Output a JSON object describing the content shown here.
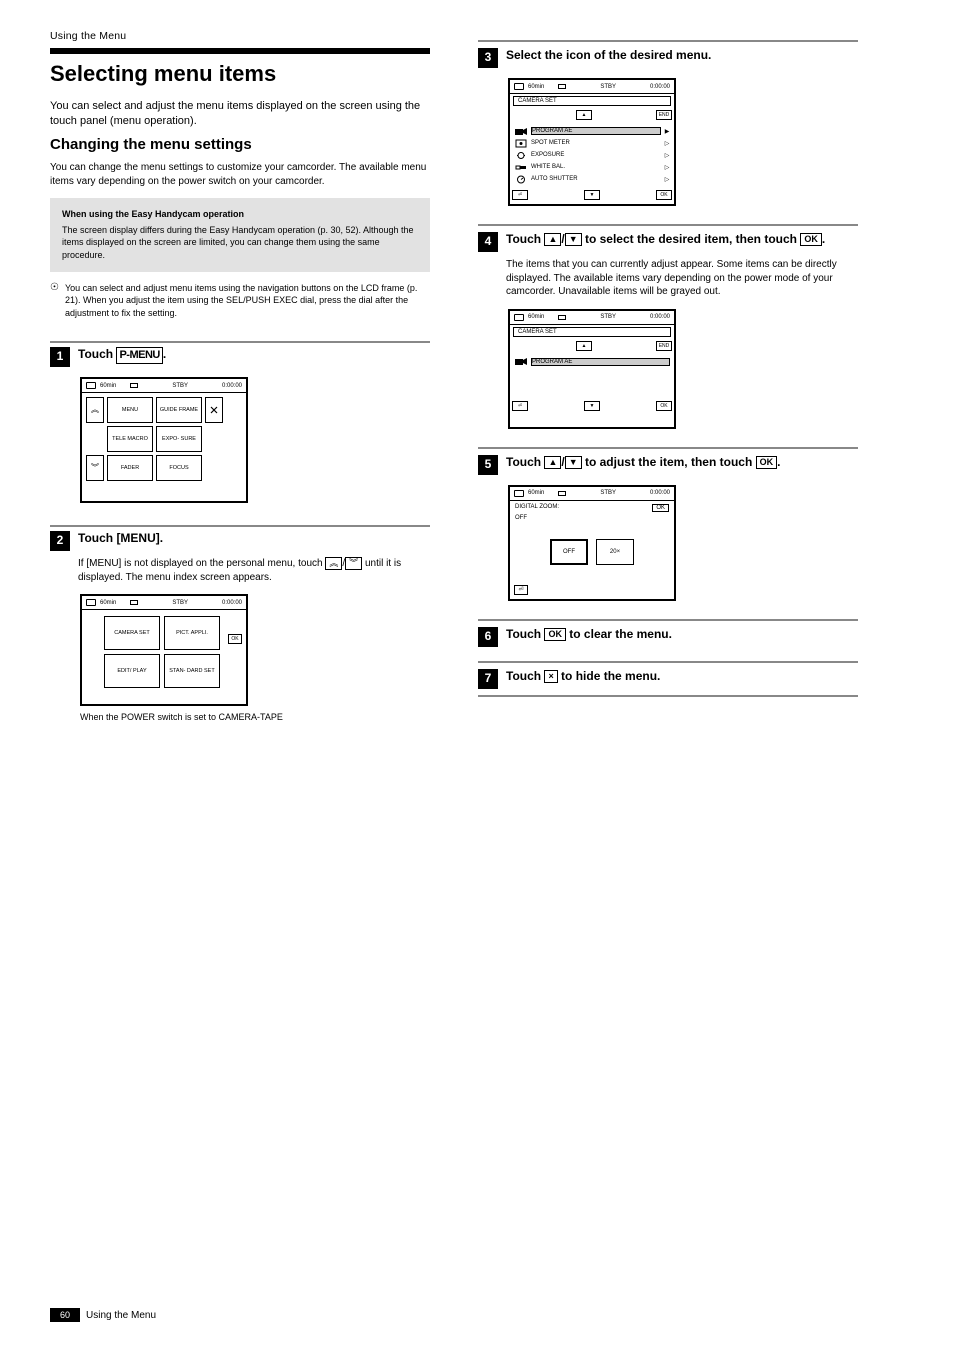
{
  "page": {
    "number": "60",
    "footer_section": "Using the Menu"
  },
  "col_left": {
    "overline": "Using the Menu",
    "thick_rule_color": "#000000",
    "title": "Selecting menu items",
    "intro": "You can select and adjust the menu items displayed on the screen using the touch panel (menu operation).",
    "subtitle": "Changing the menu settings",
    "body1": "You can change the menu settings to customize your camcorder. The available menu items vary depending on the power switch on your camcorder.",
    "tint_title": "When using the Easy Handycam operation",
    "tint_body": "The screen display differs during the Easy Handycam operation (p. 30, 52). Although the items displayed on the screen are limited, you can change them using the same procedure.",
    "tip_icon": "☉",
    "tip_text": "You can select and adjust menu items using the navigation buttons on the LCD frame (p. 21). When you adjust the item using the SEL/PUSH EXEC dial, press the dial after the adjustment to fix the setting.",
    "step1_text_prefix": "Touch ",
    "pmenu_label": "P-MENU",
    "step1_text_suffix": ".",
    "lcd1": {
      "header_left": "60min",
      "header_center": "STBY",
      "header_right": "0:00:00",
      "nav_up": "«",
      "nav_down": "»",
      "close": "×",
      "cells": [
        "MENU",
        "GUIDE\nFRAME",
        "TELE\nMACRO",
        "EXPO-\nSURE",
        "FADER",
        "FOCUS"
      ]
    },
    "step2_text": "Touch [MENU].",
    "step2_note_prefix": "If [MENU] is not displayed on the personal menu, touch ",
    "step2_note_suffix": " until it is displayed. The menu index screen appears.",
    "lcd2": {
      "header_left": "60min",
      "header_center": "STBY",
      "header_right": "0:00:00",
      "ok": "OK",
      "cells": [
        "CAMERA\nSET",
        "PICT.\nAPPLI.",
        "EDIT/\nPLAY",
        "STAN-\nDARD\nSET"
      ]
    },
    "lcd2_under": "When the POWER switch is set to CAMERA-TAPE"
  },
  "col_right": {
    "step3_text": "Select the icon of the desired menu.",
    "lcd3": {
      "header_left": "60min",
      "header_center": "STBY",
      "header_right": "0:00:00",
      "title_row": "CAMERA SET",
      "end": "END",
      "return": "⏎",
      "ok": "OK",
      "items": [
        {
          "icon": "camera",
          "label": "PROGRAM AE",
          "arrow": "▶",
          "hl": true
        },
        {
          "icon": "meter",
          "label": "SPOT METER",
          "arrow": "▷"
        },
        {
          "icon": "expo",
          "label": "EXPOSURE",
          "arrow": "▷"
        },
        {
          "icon": "wb",
          "label": "WHITE BAL.",
          "arrow": "▷"
        },
        {
          "icon": "as",
          "label": "AUTO SHUTTER",
          "arrow": "▷"
        }
      ]
    },
    "step4_text_prefix": "Touch ",
    "step4_text_mid": " to select the desired item, then touch ",
    "step4_text_suffix": ".",
    "ok_label": "OK",
    "step4_para": "The items that you can currently adjust appear. Some items can be directly displayed. The available items vary depending on the power mode of your camcorder. Unavailable items will be grayed out.",
    "lcd4": {
      "header_left": "60min",
      "header_center": "STBY",
      "header_right": "0:00:00",
      "title_row": "CAMERA SET",
      "end": "END",
      "return": "⏎",
      "ok": "OK",
      "item_icon": "camera",
      "item_label": "PROGRAM AE"
    },
    "step5_text_prefix": "Touch ",
    "step5_text_mid": " to adjust the item, then touch ",
    "step5_text_suffix": ".",
    "lcd5": {
      "header_left": "60min",
      "header_center": "STBY",
      "header_right": "0:00:00",
      "title": "DIGITAL ZOOM:",
      "selected": "OFF",
      "return": "⏎",
      "ok": "OK",
      "btn_left": "OFF",
      "btn_right": "20×"
    },
    "step6_text_prefix": "Touch ",
    "step6_text_suffix": " to clear the menu.",
    "step7_text_prefix": "Touch ",
    "step7_x": "×",
    "step7_text_suffix": " to hide the menu."
  },
  "colors": {
    "rule": "#000000",
    "grey_rule": "#8a8a8a",
    "tint_bg": "#e2e2e2",
    "black": "#000000",
    "white": "#ffffff"
  }
}
